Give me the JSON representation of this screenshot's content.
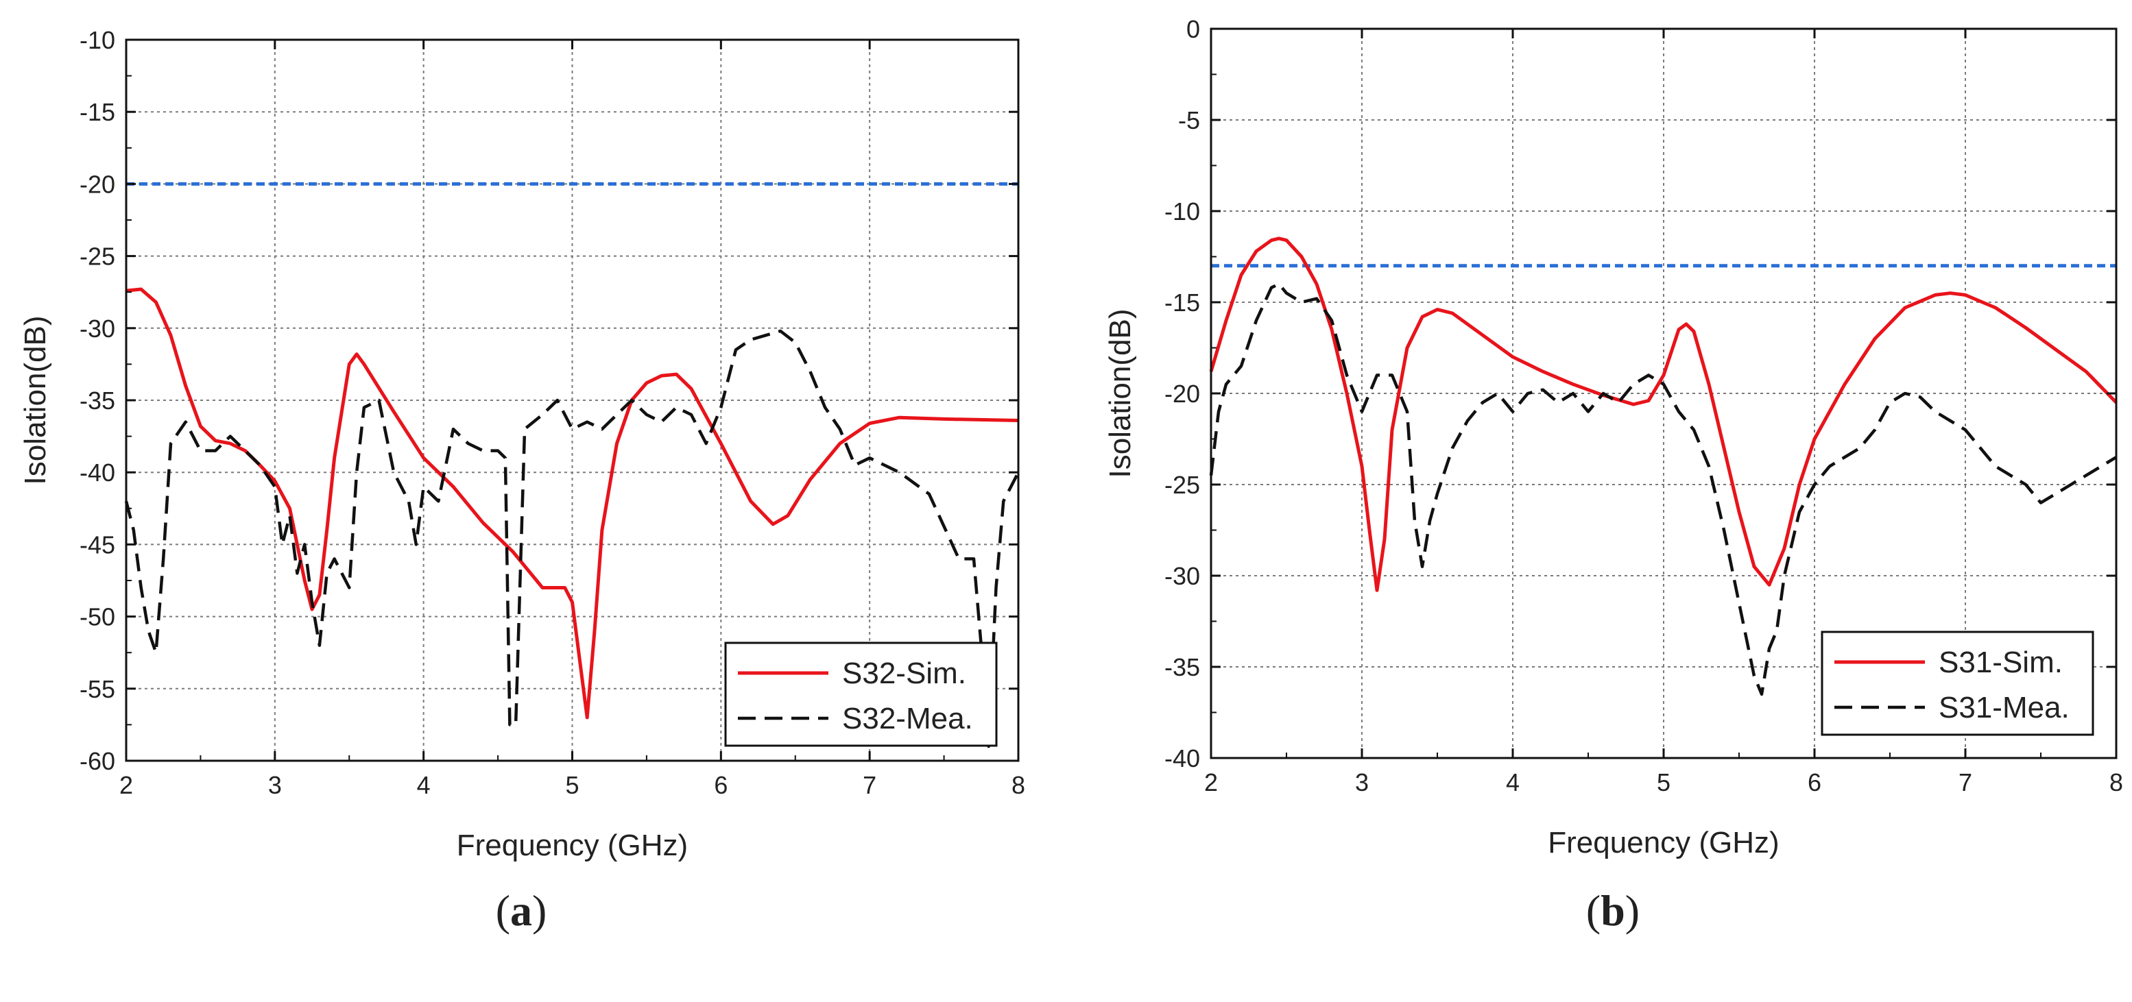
{
  "colors": {
    "sim": "#e8141b",
    "mea": "#111111",
    "threshold": "#2a6fd6",
    "grid": "#7a7a7a",
    "axis": "#111111"
  },
  "chart_data": [
    {
      "type": "line",
      "panel_label": "a",
      "panel_label_open": "(",
      "panel_label_close": ")",
      "xlabel": "Frequency (GHz)",
      "ylabel": "Isolation(dB)",
      "xlim": [
        2,
        8
      ],
      "ylim": [
        -60,
        -10
      ],
      "xticks": [
        2,
        3,
        4,
        5,
        6,
        7,
        8
      ],
      "yticks": [
        -60,
        -55,
        -50,
        -45,
        -40,
        -35,
        -30,
        -25,
        -20,
        -15,
        -10
      ],
      "grid": true,
      "legend": "bottom-right",
      "threshold": -20,
      "series": [
        {
          "name": "S32-Sim.",
          "style": "solid",
          "points": [
            [
              2.0,
              -27.4
            ],
            [
              2.1,
              -27.3
            ],
            [
              2.2,
              -28.2
            ],
            [
              2.3,
              -30.5
            ],
            [
              2.4,
              -34.0
            ],
            [
              2.5,
              -36.8
            ],
            [
              2.6,
              -37.8
            ],
            [
              2.7,
              -38.0
            ],
            [
              2.8,
              -38.5
            ],
            [
              2.9,
              -39.5
            ],
            [
              3.0,
              -40.6
            ],
            [
              3.1,
              -42.5
            ],
            [
              3.2,
              -47.5
            ],
            [
              3.25,
              -49.5
            ],
            [
              3.3,
              -48.5
            ],
            [
              3.35,
              -44.0
            ],
            [
              3.4,
              -39.0
            ],
            [
              3.5,
              -32.5
            ],
            [
              3.55,
              -31.8
            ],
            [
              3.6,
              -32.5
            ],
            [
              3.8,
              -35.8
            ],
            [
              4.0,
              -39.0
            ],
            [
              4.2,
              -41.0
            ],
            [
              4.4,
              -43.5
            ],
            [
              4.6,
              -45.5
            ],
            [
              4.8,
              -48.0
            ],
            [
              4.95,
              -48.0
            ],
            [
              5.0,
              -49.0
            ],
            [
              5.05,
              -53.0
            ],
            [
              5.1,
              -57.0
            ],
            [
              5.15,
              -51.0
            ],
            [
              5.2,
              -44.0
            ],
            [
              5.3,
              -38.0
            ],
            [
              5.4,
              -35.0
            ],
            [
              5.5,
              -33.8
            ],
            [
              5.6,
              -33.3
            ],
            [
              5.7,
              -33.2
            ],
            [
              5.8,
              -34.2
            ],
            [
              6.0,
              -38.0
            ],
            [
              6.2,
              -42.0
            ],
            [
              6.35,
              -43.6
            ],
            [
              6.45,
              -43.0
            ],
            [
              6.6,
              -40.5
            ],
            [
              6.8,
              -38.0
            ],
            [
              7.0,
              -36.6
            ],
            [
              7.2,
              -36.2
            ],
            [
              7.5,
              -36.3
            ],
            [
              8.0,
              -36.4
            ]
          ]
        },
        {
          "name": "S32-Mea.",
          "style": "dashed",
          "points": [
            [
              2.0,
              -42.0
            ],
            [
              2.05,
              -44.0
            ],
            [
              2.1,
              -48.0
            ],
            [
              2.15,
              -51.0
            ],
            [
              2.2,
              -52.5
            ],
            [
              2.25,
              -46.0
            ],
            [
              2.3,
              -38.0
            ],
            [
              2.4,
              -36.5
            ],
            [
              2.5,
              -38.5
            ],
            [
              2.6,
              -38.5
            ],
            [
              2.7,
              -37.5
            ],
            [
              2.8,
              -38.5
            ],
            [
              2.9,
              -39.5
            ],
            [
              3.0,
              -41.0
            ],
            [
              3.05,
              -45.0
            ],
            [
              3.1,
              -43.0
            ],
            [
              3.15,
              -47.0
            ],
            [
              3.2,
              -45.0
            ],
            [
              3.25,
              -49.0
            ],
            [
              3.3,
              -52.0
            ],
            [
              3.35,
              -47.0
            ],
            [
              3.4,
              -46.0
            ],
            [
              3.5,
              -48.0
            ],
            [
              3.55,
              -40.0
            ],
            [
              3.6,
              -35.5
            ],
            [
              3.7,
              -35.0
            ],
            [
              3.8,
              -40.0
            ],
            [
              3.9,
              -42.0
            ],
            [
              3.95,
              -45.0
            ],
            [
              4.0,
              -41.0
            ],
            [
              4.1,
              -42.0
            ],
            [
              4.2,
              -37.0
            ],
            [
              4.3,
              -38.0
            ],
            [
              4.4,
              -38.5
            ],
            [
              4.5,
              -38.5
            ],
            [
              4.55,
              -39.0
            ],
            [
              4.58,
              -57.5
            ],
            [
              4.62,
              -57.5
            ],
            [
              4.68,
              -37.0
            ],
            [
              4.8,
              -36.0
            ],
            [
              4.9,
              -35.0
            ],
            [
              5.0,
              -37.0
            ],
            [
              5.1,
              -36.5
            ],
            [
              5.2,
              -37.0
            ],
            [
              5.3,
              -36.0
            ],
            [
              5.4,
              -35.0
            ],
            [
              5.5,
              -36.0
            ],
            [
              5.6,
              -36.5
            ],
            [
              5.7,
              -35.5
            ],
            [
              5.8,
              -36.0
            ],
            [
              5.9,
              -38.0
            ],
            [
              6.0,
              -35.5
            ],
            [
              6.1,
              -31.5
            ],
            [
              6.2,
              -30.8
            ],
            [
              6.3,
              -30.5
            ],
            [
              6.4,
              -30.2
            ],
            [
              6.5,
              -31.0
            ],
            [
              6.6,
              -33.0
            ],
            [
              6.7,
              -35.5
            ],
            [
              6.8,
              -37.0
            ],
            [
              6.9,
              -39.5
            ],
            [
              7.0,
              -39.0
            ],
            [
              7.2,
              -40.0
            ],
            [
              7.4,
              -41.5
            ],
            [
              7.6,
              -46.0
            ],
            [
              7.7,
              -46.0
            ],
            [
              7.75,
              -52.0
            ],
            [
              7.8,
              -59.0
            ],
            [
              7.85,
              -48.0
            ],
            [
              7.9,
              -42.0
            ],
            [
              8.0,
              -40.0
            ]
          ]
        }
      ]
    },
    {
      "type": "line",
      "panel_label": "b",
      "panel_label_open": "(",
      "panel_label_close": ")",
      "xlabel": "Frequency (GHz)",
      "ylabel": "Isolation(dB)",
      "xlim": [
        2,
        8
      ],
      "ylim": [
        -40,
        0
      ],
      "xticks": [
        2,
        3,
        4,
        5,
        6,
        7,
        8
      ],
      "yticks": [
        -40,
        -35,
        -30,
        -25,
        -20,
        -15,
        -10,
        -5,
        0
      ],
      "grid": true,
      "legend": "bottom-right",
      "threshold": -13,
      "series": [
        {
          "name": "S31-Sim.",
          "style": "solid",
          "points": [
            [
              2.0,
              -18.8
            ],
            [
              2.1,
              -16.0
            ],
            [
              2.2,
              -13.5
            ],
            [
              2.3,
              -12.2
            ],
            [
              2.4,
              -11.6
            ],
            [
              2.45,
              -11.5
            ],
            [
              2.5,
              -11.6
            ],
            [
              2.6,
              -12.5
            ],
            [
              2.7,
              -14.0
            ],
            [
              2.8,
              -16.5
            ],
            [
              2.9,
              -20.0
            ],
            [
              3.0,
              -24.0
            ],
            [
              3.05,
              -27.5
            ],
            [
              3.1,
              -30.8
            ],
            [
              3.15,
              -28.0
            ],
            [
              3.2,
              -22.0
            ],
            [
              3.3,
              -17.5
            ],
            [
              3.4,
              -15.8
            ],
            [
              3.5,
              -15.4
            ],
            [
              3.6,
              -15.6
            ],
            [
              3.8,
              -16.8
            ],
            [
              4.0,
              -18.0
            ],
            [
              4.2,
              -18.8
            ],
            [
              4.4,
              -19.5
            ],
            [
              4.6,
              -20.1
            ],
            [
              4.8,
              -20.6
            ],
            [
              4.9,
              -20.4
            ],
            [
              5.0,
              -19.0
            ],
            [
              5.1,
              -16.5
            ],
            [
              5.15,
              -16.2
            ],
            [
              5.2,
              -16.6
            ],
            [
              5.3,
              -19.5
            ],
            [
              5.4,
              -23.0
            ],
            [
              5.5,
              -26.5
            ],
            [
              5.6,
              -29.5
            ],
            [
              5.7,
              -30.5
            ],
            [
              5.8,
              -28.5
            ],
            [
              5.9,
              -25.0
            ],
            [
              6.0,
              -22.5
            ],
            [
              6.2,
              -19.5
            ],
            [
              6.4,
              -17.0
            ],
            [
              6.6,
              -15.3
            ],
            [
              6.8,
              -14.6
            ],
            [
              6.9,
              -14.5
            ],
            [
              7.0,
              -14.6
            ],
            [
              7.2,
              -15.3
            ],
            [
              7.4,
              -16.4
            ],
            [
              7.6,
              -17.6
            ],
            [
              7.8,
              -18.8
            ],
            [
              8.0,
              -20.5
            ]
          ]
        },
        {
          "name": "S31-Mea.",
          "style": "dashed",
          "points": [
            [
              2.0,
              -24.5
            ],
            [
              2.05,
              -21.0
            ],
            [
              2.1,
              -19.5
            ],
            [
              2.2,
              -18.5
            ],
            [
              2.3,
              -16.0
            ],
            [
              2.4,
              -14.2
            ],
            [
              2.45,
              -14.0
            ],
            [
              2.5,
              -14.5
            ],
            [
              2.6,
              -15.0
            ],
            [
              2.7,
              -14.8
            ],
            [
              2.8,
              -16.0
            ],
            [
              2.9,
              -19.0
            ],
            [
              3.0,
              -21.0
            ],
            [
              3.05,
              -20.0
            ],
            [
              3.1,
              -19.0
            ],
            [
              3.2,
              -19.0
            ],
            [
              3.3,
              -21.0
            ],
            [
              3.35,
              -27.0
            ],
            [
              3.4,
              -29.5
            ],
            [
              3.45,
              -27.0
            ],
            [
              3.5,
              -25.5
            ],
            [
              3.6,
              -23.0
            ],
            [
              3.7,
              -21.5
            ],
            [
              3.8,
              -20.5
            ],
            [
              3.9,
              -20.0
            ],
            [
              4.0,
              -21.0
            ],
            [
              4.1,
              -20.0
            ],
            [
              4.2,
              -19.8
            ],
            [
              4.3,
              -20.5
            ],
            [
              4.4,
              -20.0
            ],
            [
              4.5,
              -21.0
            ],
            [
              4.6,
              -20.0
            ],
            [
              4.7,
              -20.5
            ],
            [
              4.8,
              -19.5
            ],
            [
              4.9,
              -19.0
            ],
            [
              5.0,
              -19.5
            ],
            [
              5.1,
              -21.0
            ],
            [
              5.2,
              -22.0
            ],
            [
              5.3,
              -24.0
            ],
            [
              5.4,
              -27.5
            ],
            [
              5.5,
              -31.5
            ],
            [
              5.6,
              -35.5
            ],
            [
              5.65,
              -36.5
            ],
            [
              5.7,
              -34.0
            ],
            [
              5.75,
              -33.0
            ],
            [
              5.8,
              -30.0
            ],
            [
              5.9,
              -26.5
            ],
            [
              6.0,
              -25.0
            ],
            [
              6.1,
              -24.0
            ],
            [
              6.2,
              -23.5
            ],
            [
              6.3,
              -23.0
            ],
            [
              6.4,
              -22.0
            ],
            [
              6.5,
              -20.5
            ],
            [
              6.6,
              -20.0
            ],
            [
              6.7,
              -20.2
            ],
            [
              6.8,
              -21.0
            ],
            [
              6.9,
              -21.5
            ],
            [
              7.0,
              -22.0
            ],
            [
              7.1,
              -23.0
            ],
            [
              7.2,
              -24.0
            ],
            [
              7.3,
              -24.5
            ],
            [
              7.4,
              -25.0
            ],
            [
              7.5,
              -26.0
            ],
            [
              7.6,
              -25.5
            ],
            [
              7.7,
              -25.0
            ],
            [
              7.8,
              -24.5
            ],
            [
              7.9,
              -24.0
            ],
            [
              8.0,
              -23.5
            ]
          ]
        }
      ]
    }
  ]
}
